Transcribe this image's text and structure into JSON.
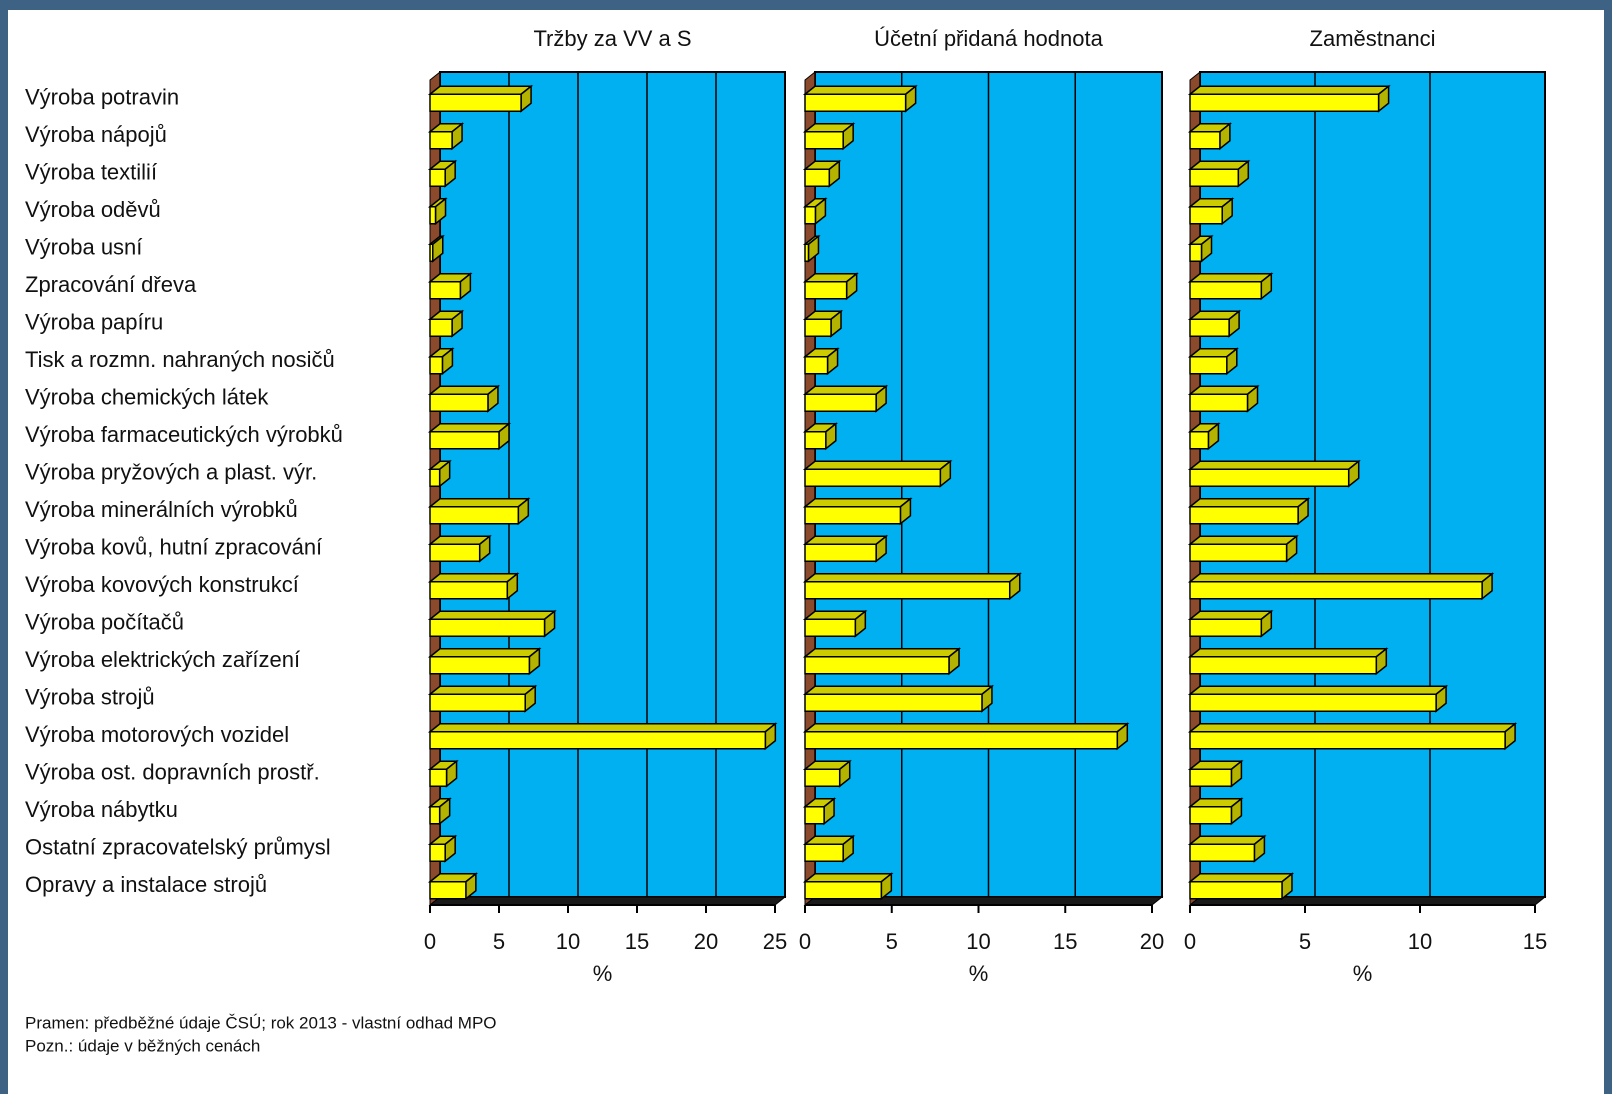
{
  "chart_data": [
    {
      "type": "bar",
      "title": "Tržby za VV a S",
      "xlabel": "%",
      "categories": [
        "Výroba potravin",
        "Výroba nápojů",
        "Výroba textilií",
        "Výroba oděvů",
        "Výroba usní",
        "Zpracování dřeva",
        "Výroba papíru",
        "Tisk a rozmn. nahraných nosičů",
        "Výroba chemických látek",
        "Výroba farmaceutických výrobků",
        "Výroba pryžových a plast. výr.",
        "Výroba minerálních výrobků",
        "Výroba kovů, hutní zpracování",
        "Výroba kovových konstrukcí",
        "Výroba počítačů",
        "Výroba elektrických zařízení",
        "Výroba strojů",
        "Výroba motorových vozidel",
        "Výroba ost. dopravních prostř.",
        "Výroba nábytku",
        "Ostatní zpracovatelský průmysl",
        "Opravy a instalace strojů"
      ],
      "values": [
        6.6,
        1.6,
        1.1,
        0.4,
        0.2,
        2.2,
        1.6,
        0.9,
        4.2,
        5.0,
        0.7,
        6.4,
        3.6,
        5.6,
        8.3,
        7.2,
        6.9,
        24.3,
        1.2,
        0.7,
        1.1,
        2.6
      ],
      "color": "#ffff00",
      "xlim": [
        0,
        25
      ],
      "xticks": [
        0,
        5,
        10,
        15,
        20,
        25
      ],
      "grid": true
    },
    {
      "type": "bar",
      "title": "Účetní přidaná hodnota",
      "xlabel": "%",
      "values": [
        5.8,
        2.2,
        1.4,
        0.6,
        0.2,
        2.4,
        1.5,
        1.3,
        4.1,
        1.2,
        7.8,
        5.5,
        4.1,
        11.8,
        2.9,
        8.3,
        10.2,
        18.0,
        2.0,
        1.1,
        2.2,
        4.4
      ],
      "color": "#ffff00",
      "xlim": [
        0,
        20
      ],
      "xticks": [
        0,
        5,
        10,
        15,
        20
      ],
      "grid": true
    },
    {
      "type": "bar",
      "title": "Zaměstnanci",
      "xlabel": "%",
      "values": [
        8.2,
        1.3,
        2.1,
        1.4,
        0.5,
        3.1,
        1.7,
        1.6,
        2.5,
        0.8,
        6.9,
        4.7,
        4.2,
        12.7,
        3.1,
        8.1,
        10.7,
        13.7,
        1.8,
        1.8,
        2.8,
        4.0
      ],
      "color": "#ffff00",
      "xlim": [
        0,
        15
      ],
      "xticks": [
        0,
        5,
        10,
        15
      ],
      "grid": true
    }
  ],
  "footer": {
    "source": "Pramen: předběžné údaje ČSÚ; rok 2013 - vlastní odhad MPO",
    "note": "Pozn.: údaje v běžných cenách"
  }
}
